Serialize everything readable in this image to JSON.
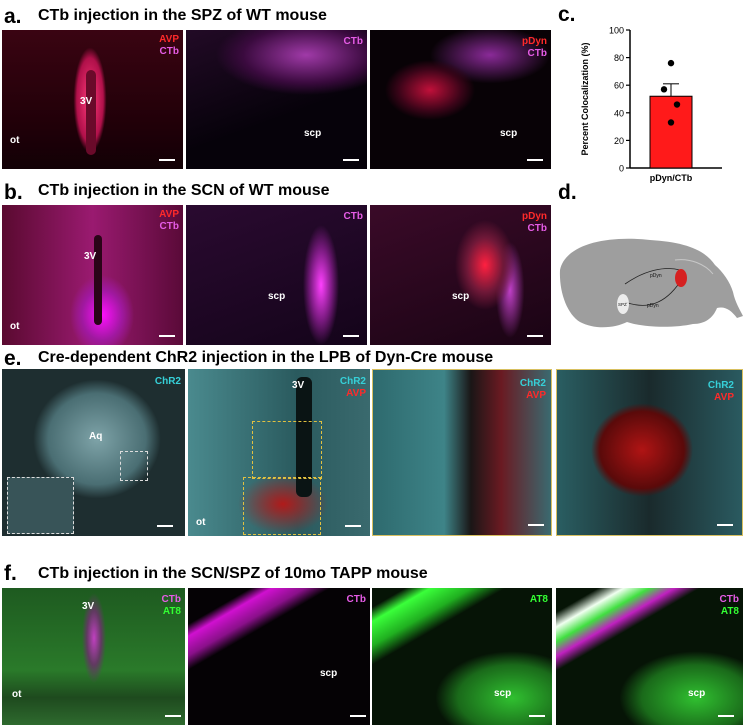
{
  "panel_a": {
    "letter": "a.",
    "title": "CTb injection in the SPZ of WT mouse",
    "img1": {
      "l1": "AVP",
      "l2": "CTb",
      "a1": "3V",
      "a2": "ot"
    },
    "img2": {
      "l1": "CTb",
      "a1": "scp"
    },
    "img3": {
      "l1": "pDyn",
      "l2": "CTb",
      "a1": "scp"
    }
  },
  "panel_b": {
    "letter": "b.",
    "title": "CTb injection in the SCN of WT mouse",
    "img1": {
      "l1": "AVP",
      "l2": "CTb",
      "a1": "3V",
      "a2": "ot"
    },
    "img2": {
      "l1": "CTb",
      "a1": "scp"
    },
    "img3": {
      "l1": "pDyn",
      "l2": "CTb",
      "a1": "scp"
    }
  },
  "panel_c": {
    "letter": "c."
  },
  "panel_d": {
    "letter": "d.",
    "diagram": {
      "t1": "pDyn",
      "t2": "SPZ",
      "t3": "pDyn"
    }
  },
  "panel_e": {
    "letter": "e.",
    "title": "Cre-dependent ChR2 injection in the LPB of Dyn-Cre mouse",
    "img1": {
      "l1": "ChR2",
      "a1": "Aq"
    },
    "img2": {
      "l1": "ChR2",
      "l2": "AVP",
      "a1": "3V",
      "a2": "ot"
    },
    "img3": {
      "l1": "ChR2",
      "l2": "AVP"
    },
    "img4": {
      "l1": "ChR2",
      "l2": "AVP"
    }
  },
  "panel_f": {
    "letter": "f.",
    "title": "CTb injection in the SCN/SPZ of 10mo TAPP mouse",
    "img1": {
      "l1": "CTb",
      "l2": "AT8",
      "a1": "3V",
      "a2": "ot"
    },
    "img2": {
      "l1": "CTb",
      "a1": "scp"
    },
    "img3": {
      "l1": "AT8",
      "a1": "scp"
    },
    "img4": {
      "l1": "CTb",
      "l2": "AT8",
      "a1": "scp"
    }
  },
  "colors": {
    "bar": "#ff1a1a",
    "avp": "#ff2a2a",
    "ctb": "#e65ce6",
    "chr2": "#36d0d8",
    "at8": "#33ff33"
  },
  "chart_data": {
    "type": "bar",
    "categories": [
      "pDyn/CTb"
    ],
    "values": [
      52
    ],
    "error": [
      9
    ],
    "points": [
      76,
      57,
      46,
      33
    ],
    "ylabel": "Percent Colocalization (%)",
    "xlabel": "",
    "ylim": [
      0,
      100
    ],
    "yticks": [
      0,
      20,
      40,
      60,
      80,
      100
    ]
  }
}
